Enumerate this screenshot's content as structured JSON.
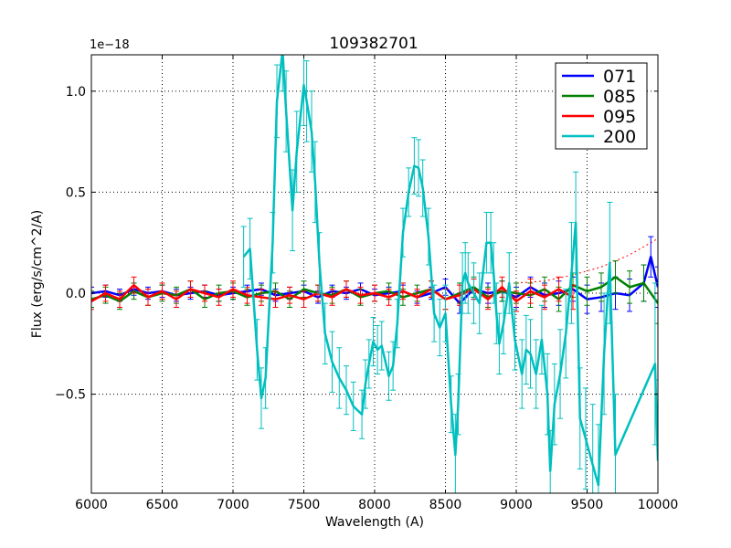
{
  "chart_data": {
    "type": "line",
    "title": "109382701",
    "xlabel": "Wavelength (A)",
    "ylabel": "Flux (erg/s/cm^2/A)",
    "y_scale_label": "1e−18",
    "xlim": [
      6000,
      10000
    ],
    "ylim": [
      -0.99,
      1.18
    ],
    "x_ticks": [
      6000,
      6500,
      7000,
      7500,
      8000,
      8500,
      9000,
      9500,
      10000
    ],
    "x_tick_labels": [
      "6000",
      "6500",
      "7000",
      "7500",
      "8000",
      "8500",
      "9000",
      "9500",
      "10000"
    ],
    "y_ticks": [
      -0.5,
      0.0,
      0.5,
      1.0
    ],
    "y_tick_labels": [
      "−0.5",
      "0.0",
      "0.5",
      "1.0"
    ],
    "grid": true,
    "legend_position": "top-right",
    "colors": {
      "s071": "#0000ff",
      "s085": "#008000",
      "s095": "#ff0000",
      "s200": "#00bfbf"
    },
    "series": [
      {
        "name": "071",
        "color": "#0000ff",
        "x": [
          6000,
          6100,
          6200,
          6300,
          6400,
          6500,
          6600,
          6700,
          6800,
          6900,
          7000,
          7100,
          7200,
          7300,
          7400,
          7500,
          7600,
          7700,
          7800,
          7900,
          8000,
          8100,
          8200,
          8300,
          8400,
          8500,
          8600,
          8700,
          8800,
          8900,
          9000,
          9100,
          9200,
          9300,
          9400,
          9500,
          9600,
          9700,
          9800,
          9900,
          9950,
          10000
        ],
        "y": [
          0.0,
          0.01,
          -0.01,
          0.02,
          0.0,
          0.01,
          -0.01,
          0.0,
          0.01,
          -0.01,
          0.0,
          0.01,
          0.02,
          -0.01,
          0.0,
          0.01,
          -0.02,
          0.01,
          0.0,
          0.02,
          -0.01,
          0.0,
          0.01,
          -0.02,
          0.0,
          0.03,
          -0.05,
          0.02,
          0.0,
          0.01,
          -0.02,
          0.03,
          -0.01,
          0.0,
          0.02,
          -0.03,
          -0.02,
          0.0,
          -0.01,
          0.05,
          0.18,
          0.03
        ],
        "err": [
          0.03,
          0.03,
          0.03,
          0.03,
          0.03,
          0.03,
          0.03,
          0.03,
          0.03,
          0.03,
          0.03,
          0.03,
          0.03,
          0.03,
          0.03,
          0.03,
          0.03,
          0.03,
          0.03,
          0.03,
          0.03,
          0.03,
          0.03,
          0.03,
          0.03,
          0.04,
          0.05,
          0.05,
          0.05,
          0.05,
          0.05,
          0.05,
          0.06,
          0.06,
          0.06,
          0.07,
          0.07,
          0.08,
          0.08,
          0.09,
          0.1,
          0.1
        ]
      },
      {
        "name": "085",
        "color": "#008000",
        "x": [
          6000,
          6100,
          6200,
          6300,
          6400,
          6500,
          6600,
          6700,
          6800,
          6900,
          7000,
          7100,
          7200,
          7300,
          7400,
          7500,
          7600,
          7700,
          7800,
          7900,
          8000,
          8100,
          8200,
          8300,
          8400,
          8500,
          8600,
          8700,
          8800,
          8900,
          9000,
          9100,
          9200,
          9300,
          9400,
          9500,
          9600,
          9700,
          9800,
          9900,
          10000
        ],
        "y": [
          -0.03,
          -0.01,
          -0.04,
          0.01,
          -0.02,
          0.0,
          -0.01,
          0.02,
          -0.03,
          0.0,
          0.01,
          -0.02,
          0.0,
          0.01,
          -0.03,
          0.02,
          0.0,
          -0.01,
          0.02,
          -0.02,
          0.0,
          0.01,
          -0.02,
          0.0,
          0.02,
          -0.03,
          0.0,
          0.03,
          -0.02,
          0.01,
          0.0,
          -0.01,
          0.02,
          -0.03,
          0.04,
          0.01,
          0.03,
          0.08,
          0.03,
          0.05,
          -0.05
        ],
        "err": [
          0.04,
          0.04,
          0.04,
          0.04,
          0.04,
          0.04,
          0.04,
          0.04,
          0.04,
          0.04,
          0.04,
          0.04,
          0.04,
          0.04,
          0.04,
          0.04,
          0.04,
          0.04,
          0.04,
          0.04,
          0.04,
          0.04,
          0.04,
          0.04,
          0.04,
          0.05,
          0.05,
          0.05,
          0.05,
          0.05,
          0.05,
          0.06,
          0.06,
          0.06,
          0.06,
          0.07,
          0.07,
          0.08,
          0.08,
          0.09,
          0.1
        ]
      },
      {
        "name": "095",
        "color": "#ff0000",
        "x": [
          6000,
          6100,
          6200,
          6300,
          6400,
          6500,
          6600,
          6700,
          6800,
          6900,
          7000,
          7100,
          7200,
          7300,
          7400,
          7500,
          7600,
          7700,
          7800,
          7900,
          8000,
          8100,
          8200,
          8300,
          8400,
          8500,
          8600,
          8700,
          8800,
          8900,
          9000,
          9100,
          9200,
          9300,
          9400
        ],
        "y": [
          -0.04,
          0.0,
          -0.03,
          0.04,
          -0.02,
          0.01,
          -0.03,
          0.02,
          0.0,
          -0.02,
          0.02,
          -0.01,
          -0.02,
          -0.03,
          -0.01,
          -0.03,
          0.0,
          -0.02,
          0.02,
          -0.01,
          0.0,
          -0.02,
          0.01,
          -0.02,
          0.02,
          -0.03,
          -0.01,
          0.02,
          -0.03,
          0.03,
          -0.04,
          0.01,
          -0.02,
          0.02,
          -0.02
        ],
        "err": [
          0.04,
          0.04,
          0.04,
          0.04,
          0.04,
          0.04,
          0.04,
          0.04,
          0.04,
          0.04,
          0.04,
          0.04,
          0.04,
          0.04,
          0.04,
          0.04,
          0.04,
          0.04,
          0.04,
          0.04,
          0.04,
          0.04,
          0.04,
          0.04,
          0.04,
          0.05,
          0.05,
          0.05,
          0.05,
          0.05,
          0.05,
          0.06,
          0.06,
          0.06,
          0.06
        ]
      },
      {
        "name": "200",
        "color": "#00bfbf",
        "x": [
          7075,
          7120,
          7170,
          7200,
          7230,
          7280,
          7310,
          7350,
          7375,
          7420,
          7450,
          7500,
          7520,
          7555,
          7580,
          7610,
          7650,
          7700,
          7750,
          7800,
          7850,
          7910,
          7935,
          7960,
          7990,
          8020,
          8050,
          8100,
          8130,
          8160,
          8200,
          8240,
          8280,
          8310,
          8340,
          8380,
          8420,
          8460,
          8500,
          8540,
          8570,
          8590,
          8620,
          8640,
          8660,
          8700,
          8740,
          8790,
          8820,
          8840,
          8860,
          8880,
          8910,
          8950,
          8990,
          9040,
          9070,
          9100,
          9140,
          9180,
          9220,
          9240,
          9270,
          9310,
          9350,
          9390,
          9420,
          9450,
          9490,
          9540,
          9580,
          9620,
          9660,
          9700,
          9980,
          10000
        ],
        "y": [
          0.18,
          0.22,
          -0.28,
          -0.52,
          -0.42,
          0.25,
          0.95,
          1.2,
          0.9,
          0.41,
          0.7,
          1.03,
          0.95,
          0.8,
          0.55,
          0.15,
          -0.2,
          -0.34,
          -0.42,
          -0.48,
          -0.56,
          -0.6,
          -0.45,
          -0.35,
          -0.24,
          -0.28,
          -0.26,
          -0.41,
          -0.36,
          -0.15,
          0.3,
          0.5,
          0.63,
          0.62,
          0.52,
          0.28,
          -0.1,
          -0.17,
          -0.1,
          -0.55,
          -0.8,
          -0.55,
          0.05,
          0.1,
          0.05,
          0.0,
          -0.05,
          0.25,
          0.25,
          0.1,
          -0.1,
          -0.25,
          -0.15,
          0.05,
          -0.23,
          -0.4,
          -0.28,
          -0.3,
          -0.4,
          -0.23,
          -0.5,
          -0.88,
          -0.55,
          -0.4,
          -0.2,
          0.1,
          0.35,
          -0.62,
          -0.72,
          -0.85,
          -0.95,
          -0.3,
          0.15,
          -0.8,
          -0.35,
          -0.83
        ],
        "err": [
          0.15,
          0.15,
          0.15,
          0.15,
          0.15,
          0.15,
          0.18,
          0.2,
          0.2,
          0.2,
          0.2,
          0.2,
          0.2,
          0.2,
          0.2,
          0.15,
          0.15,
          0.15,
          0.15,
          0.12,
          0.12,
          0.12,
          0.12,
          0.12,
          0.12,
          0.12,
          0.12,
          0.12,
          0.12,
          0.12,
          0.12,
          0.12,
          0.14,
          0.14,
          0.14,
          0.14,
          0.14,
          0.14,
          0.14,
          0.14,
          0.2,
          0.15,
          0.15,
          0.15,
          0.15,
          0.15,
          0.15,
          0.15,
          0.15,
          0.15,
          0.15,
          0.15,
          0.15,
          0.15,
          0.15,
          0.17,
          0.17,
          0.17,
          0.17,
          0.17,
          0.2,
          0.2,
          0.2,
          0.22,
          0.22,
          0.25,
          0.25,
          0.25,
          0.25,
          0.3,
          0.3,
          0.3,
          0.3,
          0.3,
          0.4,
          0.4
        ]
      }
    ],
    "dotted_red": {
      "color": "#ff0000",
      "x": [
        9000,
        9200,
        9400,
        9600,
        9800,
        10000
      ],
      "y": [
        0.05,
        0.06,
        0.09,
        0.13,
        0.19,
        0.27
      ]
    }
  }
}
